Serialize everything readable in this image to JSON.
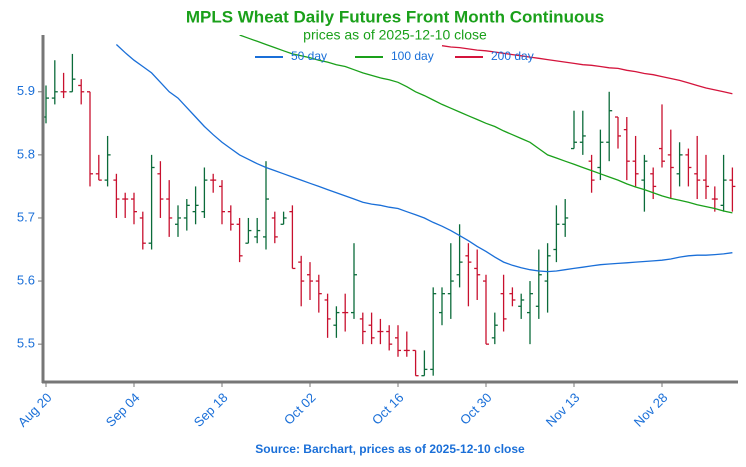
{
  "chart_data": {
    "type": "ohlc",
    "title": "MPLS Wheat Daily Futures Front Month Continuous",
    "subtitle": "prices as of 2025-12-10 close",
    "source": "Source: Barchart, prices as of 2025-12-10 close",
    "categories": [
      "Aug 20",
      null,
      null,
      null,
      null,
      null,
      null,
      null,
      null,
      null,
      "Sep 04",
      null,
      null,
      null,
      null,
      null,
      null,
      null,
      null,
      null,
      "Sep 18",
      null,
      null,
      null,
      null,
      null,
      null,
      null,
      null,
      null,
      "Oct 02",
      null,
      null,
      null,
      null,
      null,
      null,
      null,
      null,
      null,
      "Oct 16",
      null,
      null,
      null,
      null,
      null,
      null,
      null,
      null,
      null,
      "Oct 30",
      null,
      null,
      null,
      null,
      null,
      null,
      null,
      null,
      null,
      "Nov 13",
      null,
      null,
      null,
      null,
      null,
      null,
      null,
      null,
      null,
      "Nov 28",
      null,
      null,
      null,
      null,
      null,
      null,
      null,
      null
    ],
    "ohlc": {
      "open": [
        5.86,
        5.89,
        5.9,
        5.9,
        5.91,
        5.9,
        5.77,
        5.76,
        5.76,
        5.73,
        5.73,
        5.7,
        5.66,
        5.77,
        5.73,
        5.69,
        5.7,
        5.71,
        5.71,
        5.76,
        5.75,
        5.71,
        5.69,
        5.66,
        5.67,
        5.67,
        5.7,
        5.69,
        5.71,
        5.63,
        5.61,
        5.6,
        5.57,
        5.53,
        5.55,
        5.55,
        5.54,
        5.53,
        5.52,
        5.52,
        5.51,
        5.49,
        5.49,
        5.45,
        5.46,
        5.55,
        5.58,
        5.61,
        5.64,
        5.62,
        5.6,
        5.51,
        5.58,
        5.58,
        5.56,
        5.55,
        5.56,
        5.6,
        5.65,
        5.69,
        5.81,
        5.82,
        5.79,
        5.78,
        5.82,
        5.86,
        5.84,
        5.79,
        5.76,
        5.77,
        5.81,
        5.8,
        5.77,
        5.8,
        5.77,
        5.76,
        5.73,
        5.72,
        5.76
      ],
      "high": [
        5.91,
        5.95,
        5.93,
        5.96,
        5.92,
        5.9,
        5.8,
        5.83,
        5.77,
        5.74,
        5.74,
        5.71,
        5.8,
        5.79,
        5.76,
        5.72,
        5.73,
        5.75,
        5.78,
        5.77,
        5.76,
        5.72,
        5.7,
        5.7,
        5.7,
        5.79,
        5.71,
        5.71,
        5.72,
        5.64,
        5.63,
        5.61,
        5.58,
        5.56,
        5.58,
        5.66,
        5.55,
        5.55,
        5.54,
        5.53,
        5.53,
        5.52,
        5.49,
        5.49,
        5.59,
        5.59,
        5.66,
        5.69,
        5.66,
        5.65,
        5.61,
        5.55,
        5.61,
        5.59,
        5.58,
        5.6,
        5.65,
        5.66,
        5.72,
        5.73,
        5.87,
        5.87,
        5.8,
        5.84,
        5.9,
        5.86,
        5.86,
        5.83,
        5.8,
        5.78,
        5.88,
        5.84,
        5.82,
        5.81,
        5.83,
        5.8,
        5.75,
        5.8,
        5.78
      ],
      "low": [
        5.85,
        5.88,
        5.89,
        5.9,
        5.88,
        5.75,
        5.76,
        5.75,
        5.7,
        5.7,
        5.69,
        5.65,
        5.65,
        5.7,
        5.67,
        5.67,
        5.68,
        5.69,
        5.7,
        5.74,
        5.69,
        5.68,
        5.63,
        5.66,
        5.66,
        5.65,
        5.66,
        5.69,
        5.62,
        5.56,
        5.57,
        5.55,
        5.51,
        5.51,
        5.52,
        5.54,
        5.5,
        5.5,
        5.5,
        5.49,
        5.48,
        5.48,
        5.45,
        5.45,
        5.45,
        5.53,
        5.54,
        5.59,
        5.56,
        5.57,
        5.5,
        5.5,
        5.52,
        5.56,
        5.54,
        5.5,
        5.54,
        5.55,
        5.63,
        5.67,
        5.81,
        5.8,
        5.74,
        5.76,
        5.79,
        5.81,
        5.76,
        5.75,
        5.71,
        5.73,
        5.78,
        5.73,
        5.75,
        5.75,
        5.73,
        5.73,
        5.71,
        5.71,
        5.71
      ],
      "close": [
        5.89,
        5.9,
        5.9,
        5.92,
        5.9,
        5.77,
        5.76,
        5.8,
        5.73,
        5.73,
        5.71,
        5.66,
        5.78,
        5.73,
        5.7,
        5.7,
        5.72,
        5.72,
        5.76,
        5.76,
        5.71,
        5.69,
        5.64,
        5.68,
        5.68,
        5.73,
        5.67,
        5.7,
        5.62,
        5.6,
        5.6,
        5.58,
        5.54,
        5.55,
        5.55,
        5.61,
        5.52,
        5.51,
        5.52,
        5.5,
        5.49,
        5.49,
        5.45,
        5.46,
        5.58,
        5.58,
        5.6,
        5.63,
        5.63,
        5.61,
        5.5,
        5.53,
        5.54,
        5.57,
        5.57,
        5.58,
        5.61,
        5.64,
        5.69,
        5.7,
        5.82,
        5.83,
        5.76,
        5.82,
        5.87,
        5.83,
        5.79,
        5.77,
        5.79,
        5.75,
        5.79,
        5.78,
        5.8,
        5.78,
        5.76,
        5.75,
        5.73,
        5.76,
        5.75
      ]
    },
    "up_color": "#0b6b3a",
    "down_color": "#c8102e",
    "series": [
      {
        "name": "50 day",
        "color": "#1a6fd8",
        "values": [
          null,
          null,
          null,
          null,
          null,
          null,
          null,
          null,
          5.975,
          5.962,
          5.95,
          5.94,
          5.93,
          5.915,
          5.9,
          5.89,
          5.875,
          5.86,
          5.845,
          5.832,
          5.82,
          5.81,
          5.8,
          5.793,
          5.786,
          5.78,
          5.775,
          5.77,
          5.765,
          5.76,
          5.755,
          5.75,
          5.745,
          5.74,
          5.735,
          5.73,
          5.725,
          5.722,
          5.72,
          5.717,
          5.715,
          5.71,
          5.705,
          5.7,
          5.693,
          5.687,
          5.68,
          5.672,
          5.664,
          5.655,
          5.647,
          5.638,
          5.63,
          5.625,
          5.621,
          5.618,
          5.616,
          5.615,
          5.616,
          5.618,
          5.62,
          5.622,
          5.624,
          5.626,
          5.627,
          5.628,
          5.629,
          5.63,
          5.631,
          5.632,
          5.633,
          5.635,
          5.638,
          5.64,
          5.641,
          5.641,
          5.642,
          5.643,
          5.645
        ]
      },
      {
        "name": "100 day",
        "color": "#1aa01a",
        "values": [
          null,
          null,
          null,
          null,
          null,
          null,
          null,
          null,
          null,
          null,
          null,
          null,
          null,
          null,
          null,
          null,
          null,
          null,
          null,
          null,
          null,
          null,
          5.99,
          5.985,
          5.98,
          5.975,
          5.97,
          5.965,
          5.96,
          5.957,
          5.954,
          5.95,
          5.947,
          5.943,
          5.94,
          5.935,
          5.93,
          5.926,
          5.922,
          5.919,
          5.915,
          5.908,
          5.9,
          5.894,
          5.887,
          5.88,
          5.874,
          5.868,
          5.862,
          5.856,
          5.85,
          5.845,
          5.838,
          5.832,
          5.826,
          5.82,
          5.81,
          5.8,
          5.795,
          5.79,
          5.785,
          5.78,
          5.775,
          5.77,
          5.765,
          5.76,
          5.754,
          5.749,
          5.745,
          5.74,
          5.735,
          5.731,
          5.728,
          5.725,
          5.721,
          5.718,
          5.715,
          5.711,
          5.708
        ]
      },
      {
        "name": "200 day",
        "color": "#d4143c",
        "values": [
          null,
          null,
          null,
          null,
          null,
          null,
          null,
          null,
          null,
          null,
          null,
          null,
          null,
          null,
          null,
          null,
          null,
          null,
          null,
          null,
          null,
          null,
          null,
          null,
          null,
          null,
          null,
          null,
          null,
          null,
          null,
          null,
          null,
          null,
          null,
          null,
          null,
          null,
          null,
          null,
          null,
          null,
          null,
          null,
          null,
          5.973,
          5.971,
          5.97,
          5.968,
          5.966,
          5.965,
          5.963,
          5.961,
          5.959,
          5.957,
          5.955,
          5.953,
          5.951,
          5.949,
          5.947,
          5.945,
          5.943,
          5.942,
          5.94,
          5.938,
          5.937,
          5.934,
          5.932,
          5.929,
          5.927,
          5.924,
          5.921,
          5.918,
          5.914,
          5.91,
          5.906,
          5.903,
          5.9,
          5.897
        ]
      }
    ],
    "ylim": [
      5.44,
      5.99
    ],
    "yticks": [
      5.5,
      5.6,
      5.7,
      5.8,
      5.9
    ]
  }
}
